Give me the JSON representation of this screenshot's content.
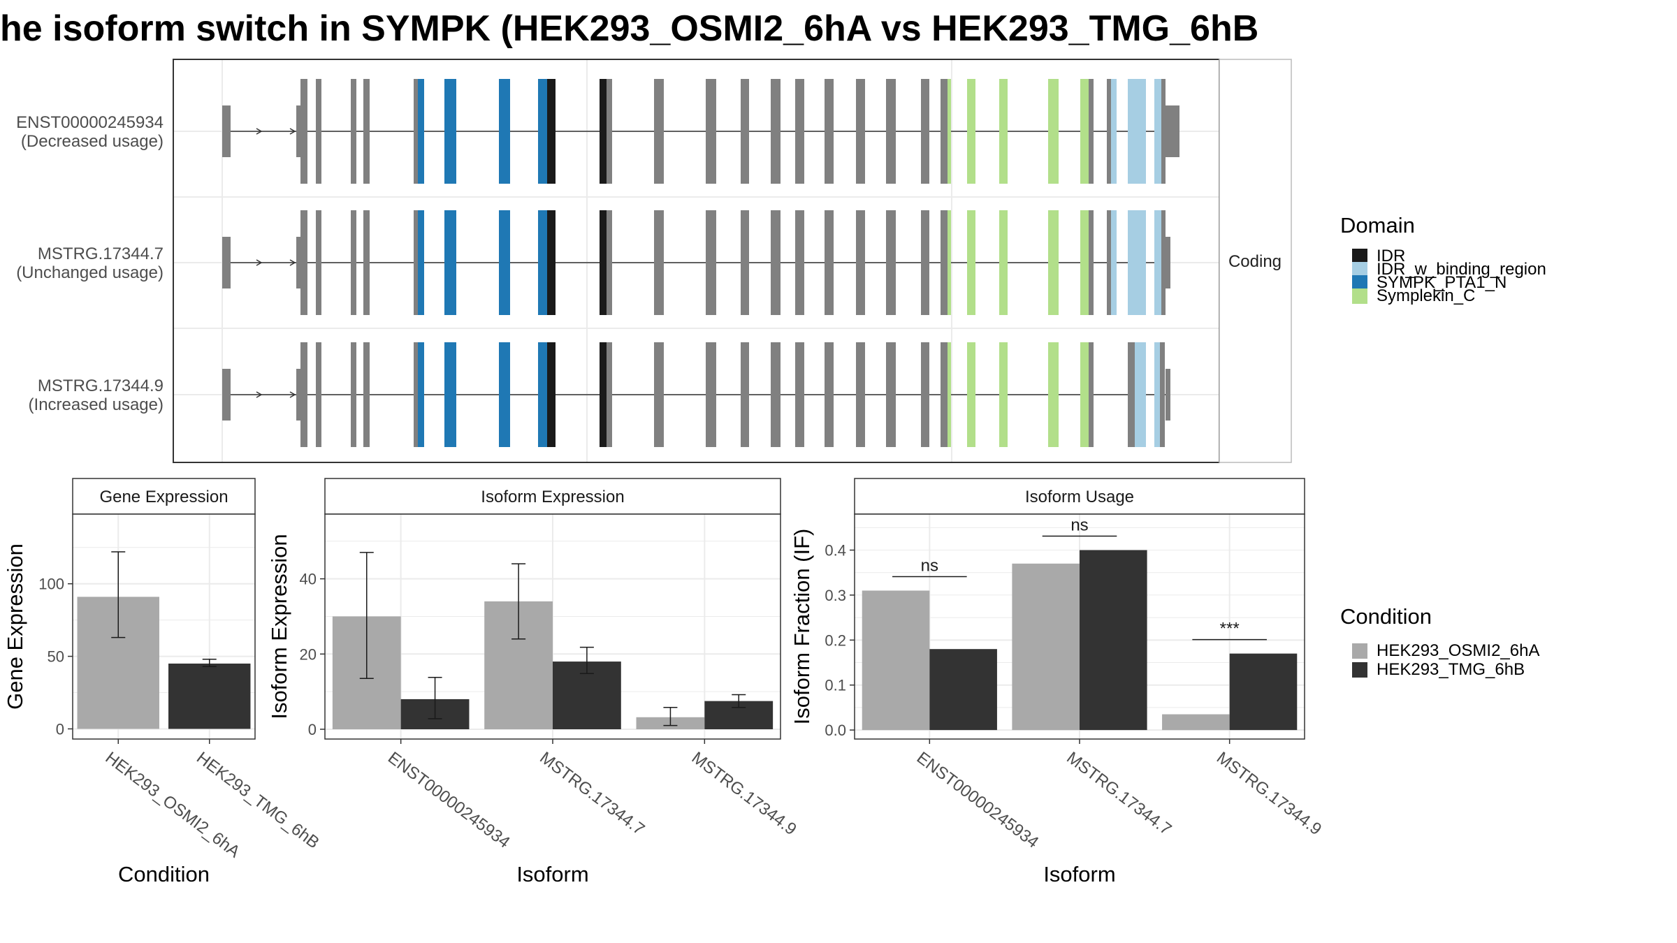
{
  "title": "he isoform switch in SYMPK (HEK293_OSMI2_6hA vs HEK293_TMG_6hB",
  "colors": {
    "IDR": "#1a1a1a",
    "IDR_w_binding_region": "#a6cee3",
    "SYMPK_PTA1_N": "#1f78b4",
    "Symplekin_C": "#b2df8a",
    "exon": "#808080",
    "cond1": "#a9a9a9",
    "cond2": "#333333"
  },
  "transcripts": {
    "facet_label": "Coding",
    "rows": [
      {
        "id": "ENST00000245934",
        "usage": "(Decreased usage)"
      },
      {
        "id": "MSTRG.17344.7",
        "usage": "(Unchanged usage)"
      },
      {
        "id": "MSTRG.17344.9",
        "usage": "(Increased usage)"
      }
    ]
  },
  "legend_domain": {
    "title": "Domain",
    "items": [
      "IDR",
      "IDR_w_binding_region",
      "SYMPK_PTA1_N",
      "Symplekin_C"
    ]
  },
  "legend_condition": {
    "title": "Condition",
    "items": [
      "HEK293_OSMI2_6hA",
      "HEK293_TMG_6hB"
    ]
  },
  "chart_data": [
    {
      "type": "bar",
      "panel": "Gene Expression",
      "xlabel": "Condition",
      "ylabel": "Gene Expression",
      "categories": [
        "HEK293_OSMI2_6hA",
        "HEK293_TMG_6hB"
      ],
      "values": [
        91,
        45
      ],
      "error_low": [
        63,
        43
      ],
      "error_high": [
        122,
        48
      ],
      "yticks": [
        0,
        50,
        100
      ],
      "ylim": [
        -7,
        148
      ]
    },
    {
      "type": "bar",
      "panel": "Isoform Expression",
      "xlabel": "Isoform",
      "ylabel": "Isoform Expression",
      "categories": [
        "ENST00000245934",
        "MSTRG.17344.7",
        "MSTRG.17344.9"
      ],
      "series": [
        {
          "name": "HEK293_OSMI2_6hA",
          "values": [
            30,
            34,
            3.2
          ],
          "error_low": [
            13.5,
            24,
            1
          ],
          "error_high": [
            47,
            44,
            5.8
          ]
        },
        {
          "name": "HEK293_TMG_6hB",
          "values": [
            8,
            18,
            7.5
          ],
          "error_low": [
            2.8,
            14.8,
            5.8
          ],
          "error_high": [
            13.8,
            21.8,
            9.2
          ]
        }
      ],
      "yticks": [
        0,
        20,
        40
      ],
      "ylim": [
        -2.6,
        57.2
      ]
    },
    {
      "type": "bar",
      "panel": "Isoform Usage",
      "xlabel": "Isoform",
      "ylabel": "Isoform Fraction (IF)",
      "categories": [
        "ENST00000245934",
        "MSTRG.17344.7",
        "MSTRG.17344.9"
      ],
      "series": [
        {
          "name": "HEK293_OSMI2_6hA",
          "values": [
            0.31,
            0.37,
            0.035
          ]
        },
        {
          "name": "HEK293_TMG_6hB",
          "values": [
            0.18,
            0.4,
            0.17
          ]
        }
      ],
      "significance": [
        "ns",
        "ns",
        "***"
      ],
      "yticks": [
        0.0,
        0.1,
        0.2,
        0.3,
        0.4
      ],
      "ylim": [
        -0.02,
        0.48
      ]
    }
  ]
}
